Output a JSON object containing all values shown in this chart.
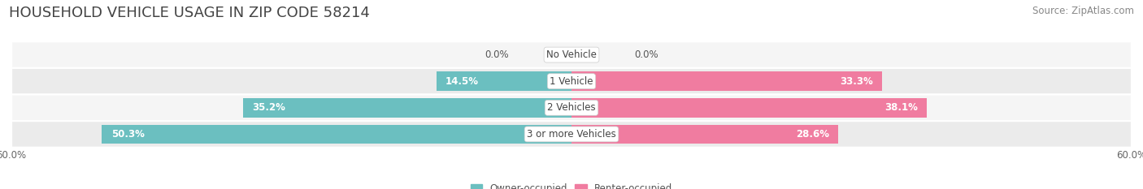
{
  "title": "HOUSEHOLD VEHICLE USAGE IN ZIP CODE 58214",
  "source": "Source: ZipAtlas.com",
  "categories": [
    "No Vehicle",
    "1 Vehicle",
    "2 Vehicles",
    "3 or more Vehicles"
  ],
  "owner_values": [
    0.0,
    14.5,
    35.2,
    50.3
  ],
  "renter_values": [
    0.0,
    33.3,
    38.1,
    28.6
  ],
  "owner_color": "#6bbfc0",
  "renter_color": "#f07ca0",
  "owner_label": "Owner-occupied",
  "renter_label": "Renter-occupied",
  "xlim": [
    -60,
    60
  ],
  "bar_height": 0.72,
  "background_color": "#ffffff",
  "row_colors": [
    "#f5f5f5",
    "#ebebeb",
    "#f5f5f5",
    "#ebebeb"
  ],
  "title_fontsize": 13,
  "source_fontsize": 8.5,
  "label_fontsize": 8.5,
  "category_fontsize": 8.5
}
